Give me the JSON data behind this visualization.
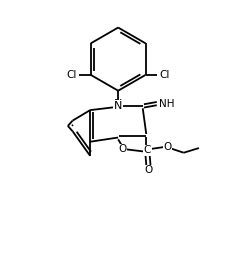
{
  "bg_color": "#ffffff",
  "line_color": "#000000",
  "text_color": "#000000",
  "line_width": 1.3,
  "font_size": 7.5,
  "figsize": [
    2.34,
    2.61
  ],
  "dpi": 100,
  "xlim": [
    0,
    10
  ],
  "ylim": [
    0,
    11
  ]
}
